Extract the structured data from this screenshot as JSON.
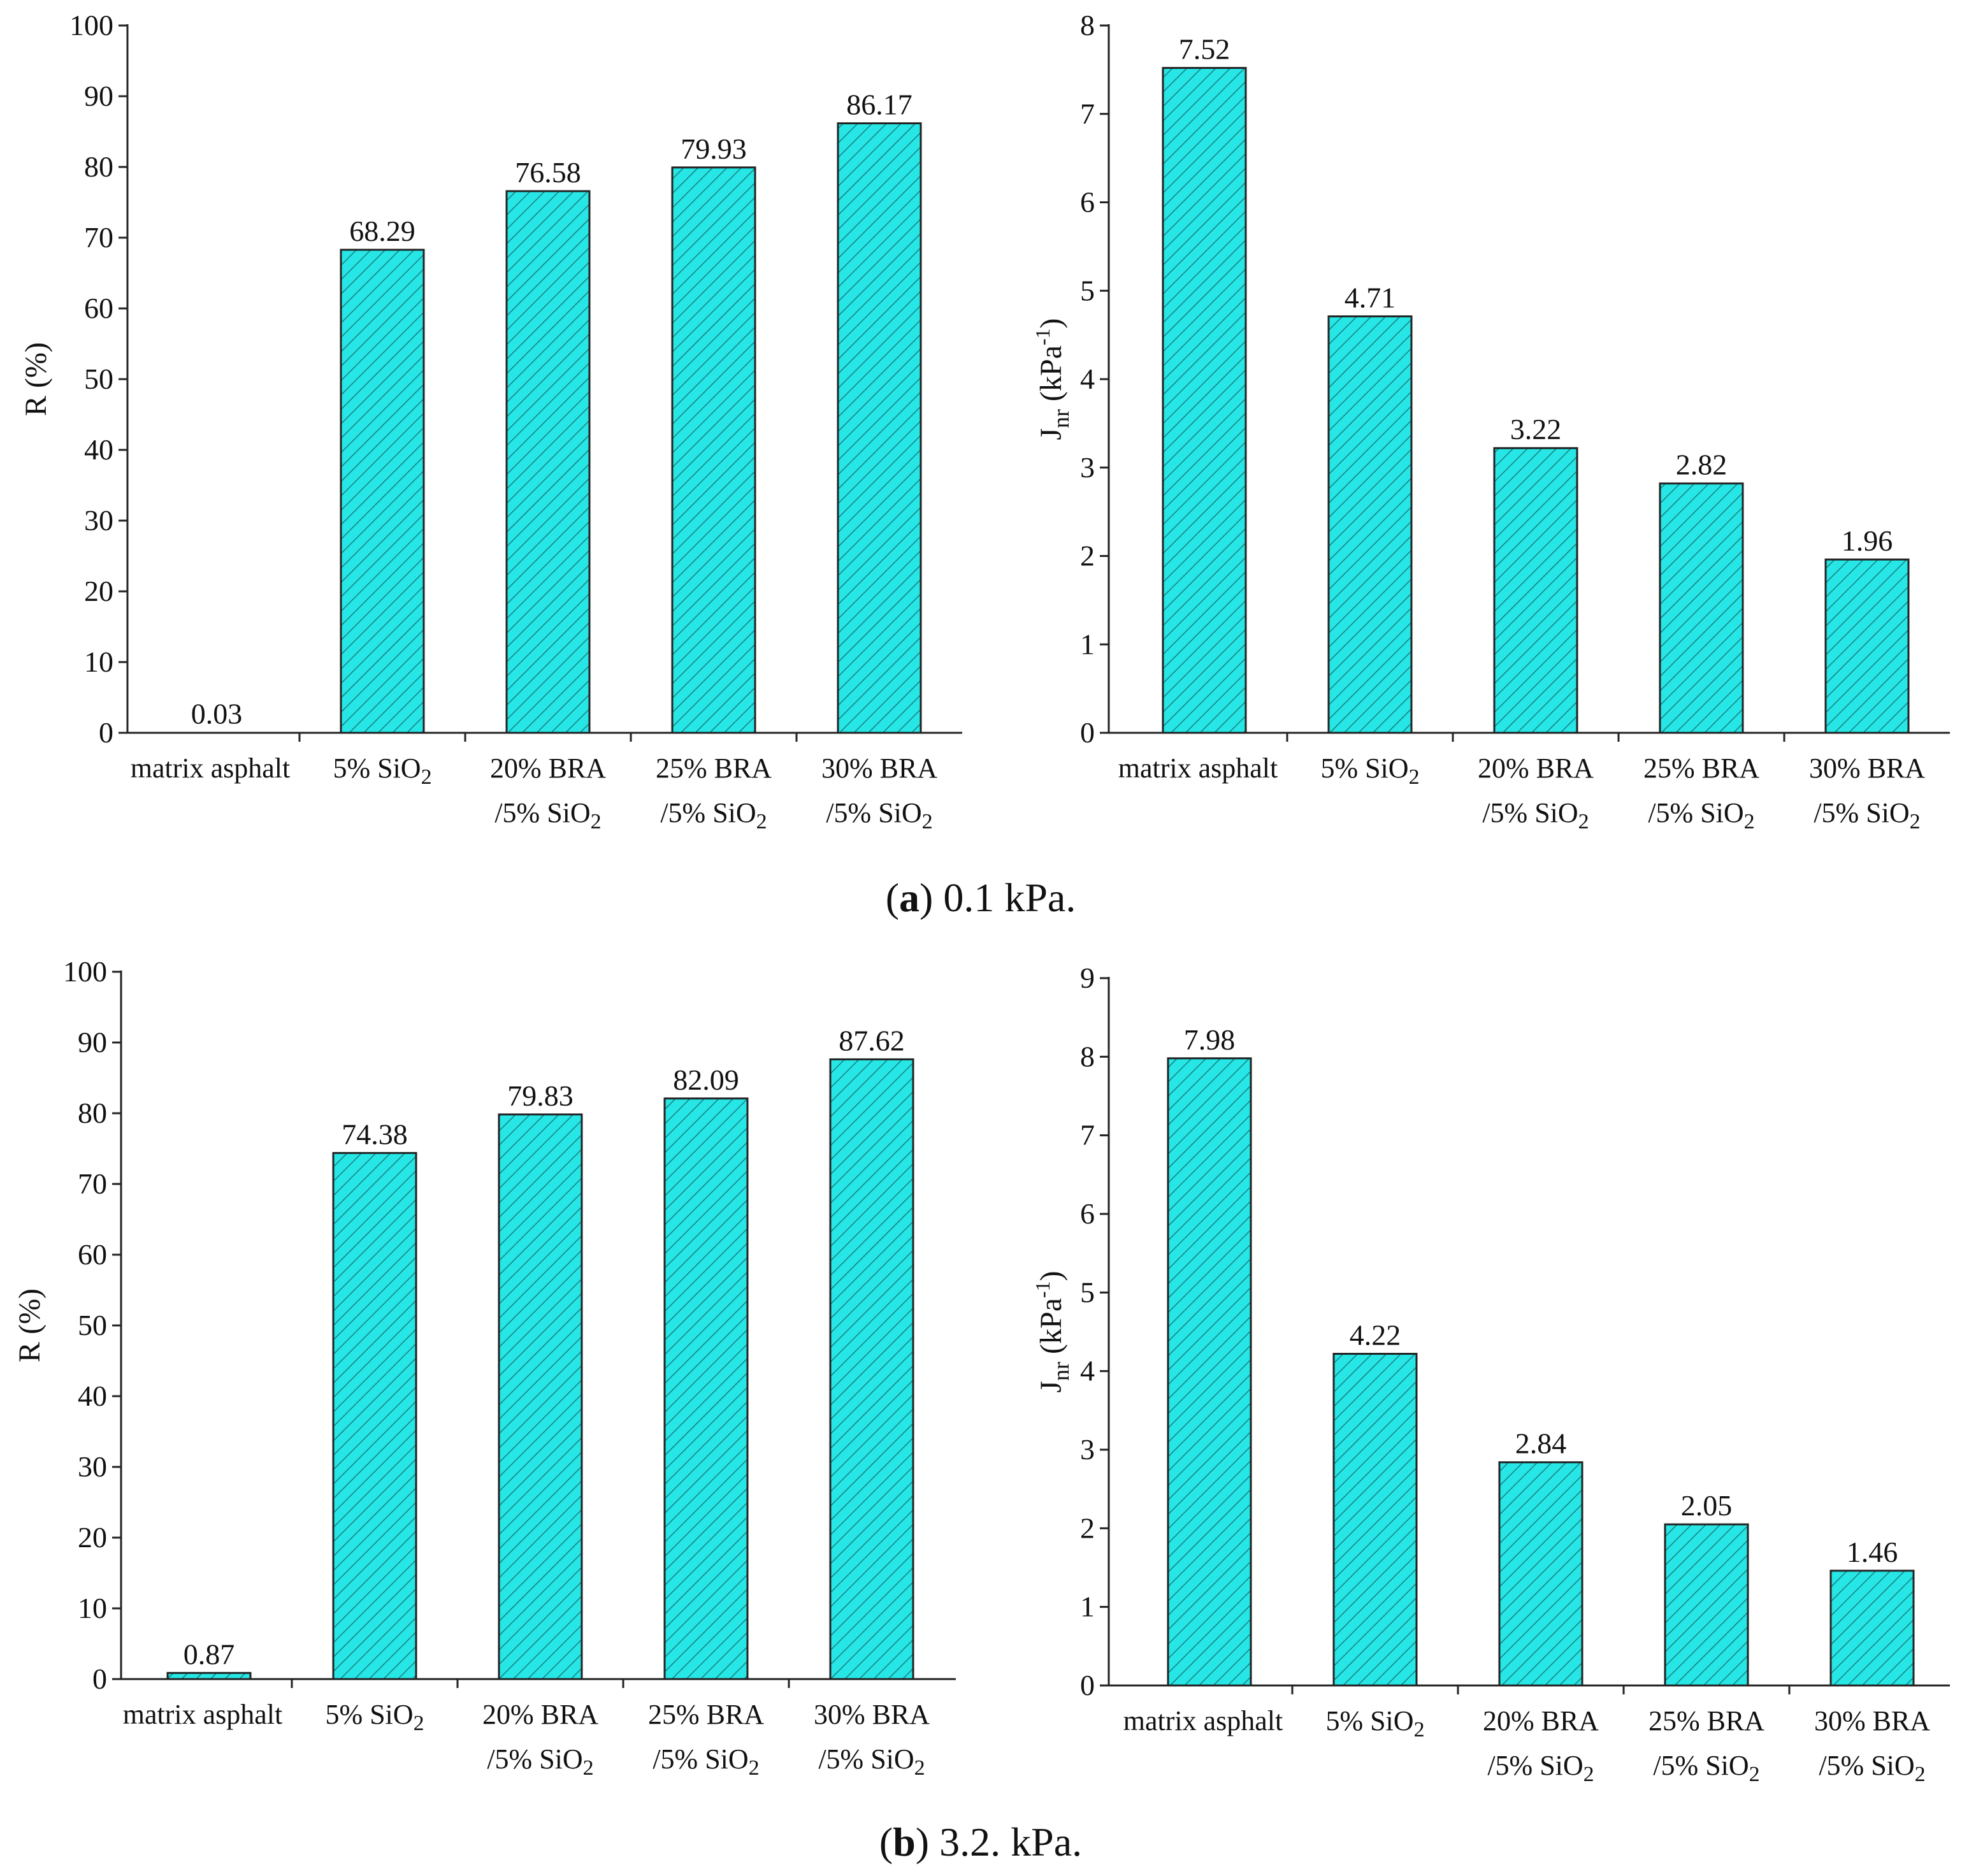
{
  "figure": {
    "captions": [
      {
        "letter": "a",
        "text": " 0.1 kPa."
      },
      {
        "letter": "b",
        "text": " 3.2. kPa."
      }
    ]
  },
  "colors": {
    "bar_fill": "#26E6E6",
    "hatch": "#1a7f80",
    "axis": "#222222"
  },
  "chart_data": [
    {
      "panel": "a-left",
      "type": "bar",
      "title": "",
      "ylabel": "R (%)",
      "xlabel": "",
      "ylim": [
        0,
        100
      ],
      "yticks": [
        0,
        10,
        20,
        30,
        40,
        50,
        60,
        70,
        80,
        90,
        100
      ],
      "categories": [
        {
          "line1": "matrix asphalt",
          "line2": ""
        },
        {
          "line1": "5% SiO",
          "line1_sub": "2",
          "line2": ""
        },
        {
          "line1": "20% BRA",
          "line2": "/5% SiO",
          "line2_sub": "2"
        },
        {
          "line1": "25% BRA",
          "line2": "/5% SiO",
          "line2_sub": "2"
        },
        {
          "line1": "30% BRA",
          "line2": "/5% SiO",
          "line2_sub": "2"
        }
      ],
      "values": [
        0.03,
        68.29,
        76.58,
        79.93,
        86.17
      ],
      "value_labels": [
        "0.03",
        "68.29",
        "76.58",
        "79.93",
        "86.17"
      ]
    },
    {
      "panel": "a-right",
      "type": "bar",
      "title": "",
      "ylabel": "J",
      "ylabel_sub": "nr",
      "ylabel_rest": " (kPa",
      "ylabel_sup": "-1",
      "ylabel_end": ")",
      "xlabel": "",
      "ylim": [
        0,
        8
      ],
      "yticks": [
        0,
        1,
        2,
        3,
        4,
        5,
        6,
        7,
        8
      ],
      "categories": [
        {
          "line1": "matrix asphalt",
          "line2": ""
        },
        {
          "line1": "5% SiO",
          "line1_sub": "2",
          "line2": ""
        },
        {
          "line1": "20% BRA",
          "line2": "/5% SiO",
          "line2_sub": "2"
        },
        {
          "line1": "25% BRA",
          "line2": "/5% SiO",
          "line2_sub": "2"
        },
        {
          "line1": "30% BRA",
          "line2": "/5% SiO",
          "line2_sub": "2"
        }
      ],
      "values": [
        7.52,
        4.71,
        3.22,
        2.82,
        1.96
      ],
      "value_labels": [
        "7.52",
        "4.71",
        "3.22",
        "2.82",
        "1.96"
      ]
    },
    {
      "panel": "b-left",
      "type": "bar",
      "title": "",
      "ylabel": "R (%)",
      "xlabel": "",
      "ylim": [
        0,
        100
      ],
      "yticks": [
        0,
        10,
        20,
        30,
        40,
        50,
        60,
        70,
        80,
        90,
        100
      ],
      "categories": [
        {
          "line1": "matrix asphalt",
          "line2": ""
        },
        {
          "line1": "5% SiO",
          "line1_sub": "2",
          "line2": ""
        },
        {
          "line1": "20% BRA",
          "line2": "/5% SiO",
          "line2_sub": "2"
        },
        {
          "line1": "25% BRA",
          "line2": "/5% SiO",
          "line2_sub": "2"
        },
        {
          "line1": "30% BRA",
          "line2": "/5% SiO",
          "line2_sub": "2"
        }
      ],
      "values": [
        0.87,
        74.38,
        79.83,
        82.09,
        87.62
      ],
      "value_labels": [
        "0.87",
        "74.38",
        "79.83",
        "82.09",
        "87.62"
      ]
    },
    {
      "panel": "b-right",
      "type": "bar",
      "title": "",
      "ylabel": "J",
      "ylabel_sub": "nr",
      "ylabel_rest": " (kPa",
      "ylabel_sup": "-1",
      "ylabel_end": ")",
      "xlabel": "",
      "ylim": [
        0,
        9
      ],
      "yticks": [
        0,
        1,
        2,
        3,
        4,
        5,
        6,
        7,
        8,
        9
      ],
      "categories": [
        {
          "line1": "matrix asphalt",
          "line2": ""
        },
        {
          "line1": "5% SiO",
          "line1_sub": "2",
          "line2": ""
        },
        {
          "line1": "20% BRA",
          "line2": "/5% SiO",
          "line2_sub": "2"
        },
        {
          "line1": "25% BRA",
          "line2": "/5% SiO",
          "line2_sub": "2"
        },
        {
          "line1": "30% BRA",
          "line2": "/5% SiO",
          "line2_sub": "2"
        }
      ],
      "values": [
        7.98,
        4.22,
        2.84,
        2.05,
        1.46
      ],
      "value_labels": [
        "7.98",
        "4.22",
        "2.84",
        "2.05",
        "1.46"
      ]
    }
  ]
}
